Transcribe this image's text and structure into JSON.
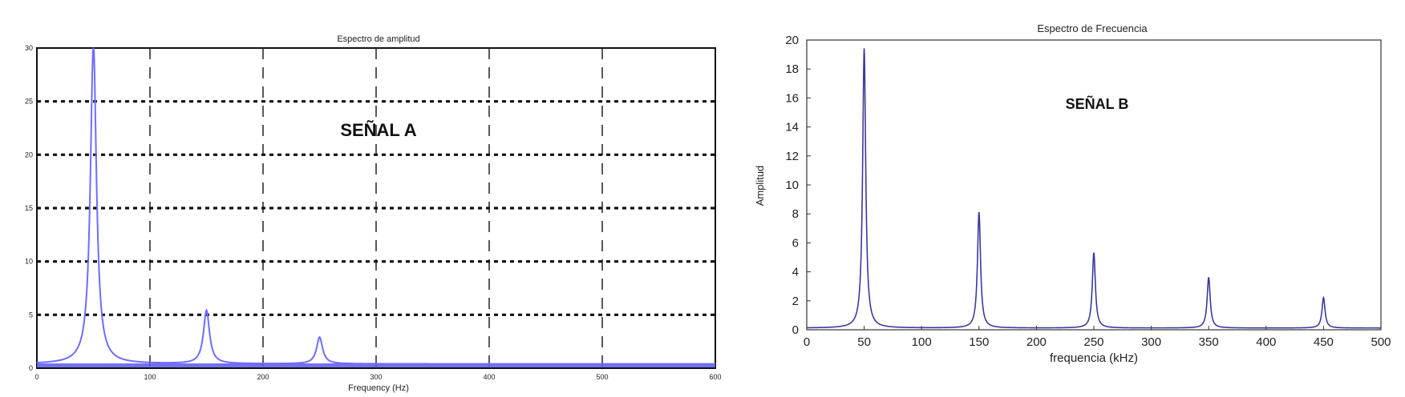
{
  "chart_data": [
    {
      "type": "line",
      "title": "Espectro de amplitud",
      "xlabel": "Frequency (Hz)",
      "ylabel": "",
      "annotation": "SEÑAL A",
      "xlim": [
        0,
        600
      ],
      "ylim": [
        0,
        30
      ],
      "xticks": [
        "0",
        "100",
        "200",
        "300",
        "400",
        "500",
        "600"
      ],
      "yticks": [
        "0",
        "5",
        "10",
        "15",
        "20",
        "25",
        "30"
      ],
      "grid": true,
      "color": "#6f6cff",
      "series": [
        {
          "peaks": [
            {
              "x": 50,
              "y": 30
            },
            {
              "x": 150,
              "y": 5
            },
            {
              "x": 250,
              "y": 2.5
            }
          ]
        }
      ]
    },
    {
      "type": "line",
      "title": "Espectro de Frecuencia",
      "xlabel": "frequencia (kHz)",
      "ylabel": "Amplitud",
      "annotation": "SEÑAL B",
      "xlim": [
        0,
        500
      ],
      "ylim": [
        0,
        20
      ],
      "xticks": [
        "0",
        "50",
        "100",
        "150",
        "200",
        "250",
        "300",
        "350",
        "400",
        "450",
        "500"
      ],
      "yticks": [
        "0",
        "2",
        "4",
        "6",
        "8",
        "10",
        "12",
        "14",
        "16",
        "18",
        "20"
      ],
      "grid": false,
      "color": "#3a3a9c",
      "series": [
        {
          "peaks": [
            {
              "x": 50,
              "y": 19.3
            },
            {
              "x": 150,
              "y": 8
            },
            {
              "x": 250,
              "y": 5.2
            },
            {
              "x": 350,
              "y": 3.5
            },
            {
              "x": 450,
              "y": 2.1
            }
          ]
        }
      ]
    }
  ]
}
